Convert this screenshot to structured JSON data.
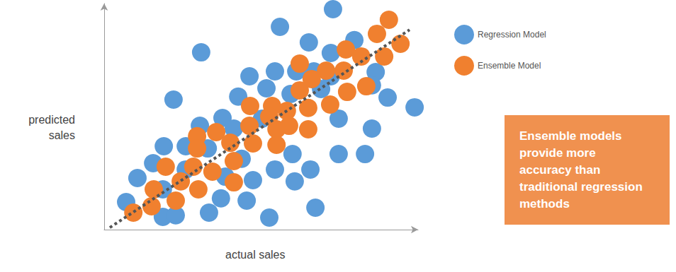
{
  "chart_data": {
    "type": "scatter",
    "x_label": "actual sales",
    "y_label": "predicted\nsales",
    "xlim": [
      0,
      100
    ],
    "ylim": [
      0,
      100
    ],
    "tick_labels": false,
    "grid": false,
    "legend": "right",
    "marker": "circle",
    "series": [
      {
        "name": "Regression Model",
        "color": "#5b9bd8",
        "x": [
          72.9,
          56.0,
          65.2,
          79.7,
          30.9,
          46.3,
          54.4,
          61.2,
          66.8,
          72.2,
          86.5,
          22.1,
          42.7,
          51.7,
          59.4,
          72.2,
          90.3,
          98.9,
          30.5,
          37.7,
          26.0,
          19.0,
          33.0,
          41.3,
          50.3,
          74.7,
          85.3,
          85.3,
          15.6,
          10.6,
          26.0,
          43.8,
          54.4,
          60.0,
          65.7,
          74.7,
          83.1,
          18.7,
          7.0,
          38.6,
          47.4,
          60.7,
          37.2,
          45.4,
          18.7,
          22.8,
          33.4,
          52.6,
          67.3,
          69.1
        ],
        "values": [
          97.5,
          89.7,
          82.8,
          83.8,
          78.4,
          67.8,
          70.0,
          70.0,
          70.0,
          78.1,
          69.7,
          57.5,
          58.8,
          62.5,
          60.0,
          67.8,
          58.4,
          54.1,
          45.9,
          49.4,
          36.9,
          36.9,
          35.9,
          44.7,
          49.1,
          49.1,
          44.7,
          63.8,
          29.4,
          22.8,
          26.6,
          31.3,
          26.6,
          33.4,
          26.6,
          33.4,
          33.4,
          17.8,
          12.2,
          23.4,
          21.9,
          21.3,
          13.8,
          12.8,
          5.6,
          6.3,
          7.5,
          5.3,
          9.7,
          62.2
        ]
      },
      {
        "name": "Ensemble Model",
        "color": "#f0802f",
        "x": [
          90.7,
          86.9,
          94.4,
          77.0,
          81.9,
          89.2,
          62.3,
          70.7,
          76.3,
          66.1,
          62.3,
          77.4,
          83.5,
          72.0,
          65.0,
          58.2,
          53.5,
          46.5,
          52.6,
          46.3,
          58.9,
          65.0,
          54.9,
          40.2,
          47.4,
          54.9,
          29.6,
          35.7,
          29.6,
          41.3,
          19.6,
          28.4,
          34.5,
          24.4,
          41.3,
          15.8,
          30.0,
          22.8,
          9.3,
          15.1
        ],
        "values": [
          92.8,
          86.6,
          82.2,
          79.7,
          76.6,
          76.6,
          73.4,
          70.3,
          70.3,
          66.6,
          61.6,
          60.9,
          63.4,
          55.3,
          53.8,
          52.5,
          54.7,
          54.7,
          50.0,
          45.9,
          45.9,
          44.4,
          44.4,
          38.4,
          38.1,
          37.5,
          41.3,
          43.1,
          35.9,
          30.3,
          27.8,
          27.8,
          25.6,
          21.3,
          20.9,
          17.8,
          17.8,
          12.8,
          7.5,
          10.3
        ]
      }
    ],
    "diagonal": {
      "x": [
        1.8,
        97.3
      ],
      "values": [
        0.9,
        88.4
      ],
      "line_style": "dotted",
      "color": "#555555"
    },
    "annotations": [
      {
        "text": "Ensemble models\nprovide more\naccuracy than\ntraditional regression\nmethods",
        "color": "#f0914f"
      }
    ]
  }
}
